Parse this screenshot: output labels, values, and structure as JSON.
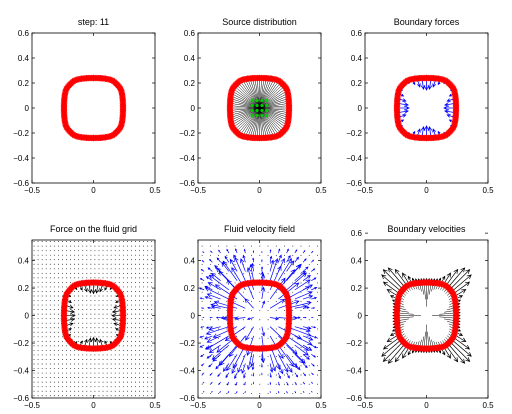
{
  "figure": {
    "colors": {
      "axes": "#000000",
      "boundary": "#ff0000",
      "arrows_black": "#000000",
      "arrows_blue": "#0000ff",
      "source_points": "#00cc00",
      "grid_dots": "#000000"
    }
  },
  "chart_data": [
    {
      "type": "scatter",
      "title": "step: 11",
      "xlabel": "",
      "ylabel": "",
      "xlim": [
        -0.5,
        0.5
      ],
      "ylim": [
        -0.6,
        0.6
      ],
      "xticks": [
        "−0.5",
        "0",
        "0.5"
      ],
      "yticks": [
        "0.6",
        "0.4",
        "0.2",
        "0",
        "−0.2",
        "−0.4",
        "−0.6"
      ],
      "ytick_values": [
        0.6,
        0.4,
        0.2,
        0,
        -0.2,
        -0.4,
        -0.6
      ],
      "grid": false,
      "boundary": {
        "radius": 0.24,
        "shape_exponent": 0.35,
        "points": 80,
        "marker": "star",
        "color": "#ff0000"
      },
      "overlay": "none"
    },
    {
      "type": "scatter",
      "title": "Source distribution",
      "xlabel": "",
      "ylabel": "",
      "xlim": [
        -0.5,
        0.5
      ],
      "ylim": [
        -0.6,
        0.6
      ],
      "xticks": [
        "−0.5",
        "0",
        "0.5"
      ],
      "yticks": [
        "0.6",
        "0.4",
        "0.2",
        "0",
        "−0.2",
        "−0.4",
        "−0.6"
      ],
      "ytick_values": [
        0.6,
        0.4,
        0.2,
        0,
        -0.2,
        -0.4,
        -0.6
      ],
      "grid": false,
      "boundary": {
        "radius": 0.24,
        "shape_exponent": 0.35,
        "points": 80,
        "marker": "star",
        "color": "#ff0000"
      },
      "overlay": "sources",
      "sources": {
        "x": [
          -0.06,
          -0.02,
          0.02,
          0.06
        ],
        "y": [
          -0.06,
          -0.02,
          0.02,
          0.06
        ],
        "color": "#00cc00"
      }
    },
    {
      "type": "scatter",
      "title": "Boundary forces",
      "xlabel": "",
      "ylabel": "",
      "xlim": [
        -0.5,
        0.5
      ],
      "ylim": [
        -0.6,
        0.6
      ],
      "xticks": [
        "−0.5",
        "0",
        "0.5"
      ],
      "yticks": [
        "0.6",
        "0.4",
        "0.2",
        "0",
        "−0.2",
        "−0.4",
        "−0.6"
      ],
      "ytick_values": [
        0.6,
        0.4,
        0.2,
        0,
        -0.2,
        -0.4,
        -0.6
      ],
      "grid": false,
      "boundary": {
        "radius": 0.24,
        "shape_exponent": 0.35,
        "points": 80,
        "marker": "star",
        "color": "#ff0000"
      },
      "overlay": "boundary-forces",
      "force_color": "#0000ff"
    },
    {
      "type": "scatter",
      "title": "Force on the fluid grid",
      "xlabel": "",
      "ylabel": "",
      "xlim": [
        -0.5,
        0.5
      ],
      "ylim": [
        -0.6,
        0.6
      ],
      "xticks": [
        "−0.5",
        "0",
        "0.5"
      ],
      "yticks": [
        "0.4",
        "0.2",
        "0",
        "−0.2",
        "−0.4",
        "−0.6"
      ],
      "ytick_values": [
        0.4,
        0.2,
        0,
        -0.2,
        -0.4,
        -0.6
      ],
      "grid": false,
      "boundary": {
        "radius": 0.24,
        "shape_exponent": 0.35,
        "points": 80,
        "marker": "star",
        "color": "#ff0000"
      },
      "overlay": "grid-force",
      "grid_spacing": 0.033,
      "arrow_color": "#000000"
    },
    {
      "type": "scatter",
      "title": "Fluid velocity field",
      "xlabel": "",
      "ylabel": "",
      "xlim": [
        -0.5,
        0.5
      ],
      "ylim": [
        -0.6,
        0.6
      ],
      "xticks": [
        "−0.5",
        "0",
        "0.5"
      ],
      "yticks": [
        "0.4",
        "0.2",
        "0",
        "−0.2",
        "−0.4",
        "−0.6"
      ],
      "ytick_values": [
        0.4,
        0.2,
        0,
        -0.2,
        -0.4,
        -0.6
      ],
      "grid": false,
      "boundary": {
        "radius": 0.24,
        "shape_exponent": 0.35,
        "points": 80,
        "marker": "star",
        "color": "#ff0000"
      },
      "overlay": "velocity-field",
      "grid_spacing": 0.067,
      "arrow_color": "#0000ff"
    },
    {
      "type": "scatter",
      "title": "Boundary velocities",
      "xlabel": "",
      "ylabel": "",
      "xlim": [
        -0.5,
        0.5
      ],
      "ylim": [
        -0.6,
        0.6
      ],
      "xticks": [
        "−0.5",
        "0",
        "0.5"
      ],
      "yticks": [
        "0.6",
        "0.4",
        "0.2",
        "0",
        "−0.2",
        "−0.4",
        "−0.6"
      ],
      "ytick_values": [
        0.6,
        0.4,
        0.2,
        0,
        -0.2,
        -0.4,
        -0.6
      ],
      "grid": false,
      "boundary": {
        "radius": 0.24,
        "shape_exponent": 0.35,
        "points": 80,
        "marker": "star",
        "color": "#ff0000"
      },
      "overlay": "boundary-velocities",
      "arrow_color": "#000000"
    }
  ]
}
